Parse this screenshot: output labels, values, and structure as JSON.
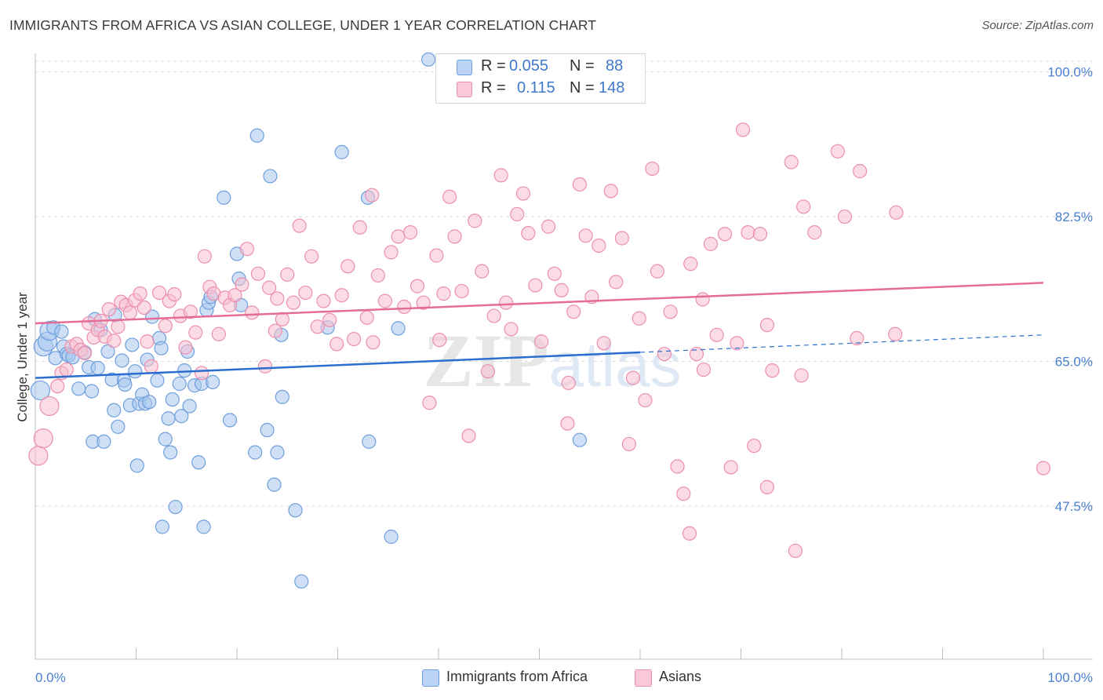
{
  "header": {
    "title": "IMMIGRANTS FROM AFRICA VS ASIAN COLLEGE, UNDER 1 YEAR CORRELATION CHART",
    "source": "Source: ZipAtlas.com"
  },
  "legend": {
    "rows": [
      {
        "r_label": "R =",
        "r_value": "0.055",
        "n_label": "N =",
        "n_value": "88"
      },
      {
        "r_label": "R =",
        "r_value": "0.115",
        "n_label": "N =",
        "n_value": "148"
      }
    ]
  },
  "watermark": {
    "zip": "ZIP",
    "atlas": "atlas"
  },
  "colors": {
    "blue_fill": "#a8c6ee",
    "blue_stroke": "#6f9fdc",
    "blue_line": "#2a6fd0",
    "pink_fill": "#f7bfd0",
    "pink_stroke": "#ec8fae",
    "pink_line": "#e46d97",
    "tick_label": "#4a7fd0",
    "grid": "#dcdcdc"
  },
  "chart_data": {
    "type": "scatter",
    "title": "IMMIGRANTS FROM AFRICA VS ASIAN COLLEGE, UNDER 1 YEAR CORRELATION CHART",
    "xlabel": "",
    "ylabel": "College, Under 1 year",
    "xlim": [
      0,
      100
    ],
    "ylim": [
      29,
      103
    ],
    "x_tick_labels": [
      "0.0%",
      "100.0%"
    ],
    "y_ticks": [
      47.5,
      65.0,
      82.5,
      100.0
    ],
    "y_tick_labels": [
      "47.5%",
      "65.0%",
      "82.5%",
      "100.0%"
    ],
    "grid": true,
    "legend_position": "bottom",
    "series": [
      {
        "name": "Immigrants from Africa",
        "color": "#a8c6ee",
        "r": 0.055,
        "n": 88,
        "trend": {
          "x0": 0,
          "y0": 63.0,
          "x1": 60,
          "y1": 66.1,
          "dashed_to_x": 100,
          "dashed_to_y": 68.2
        },
        "points": [
          [
            0.5,
            61.5
          ],
          [
            0.8,
            66.8
          ],
          [
            1.2,
            67.4
          ],
          [
            1.4,
            68.7
          ],
          [
            1.8,
            69.1
          ],
          [
            2.0,
            65.4
          ],
          [
            2.6,
            68.6
          ],
          [
            2.8,
            66.8
          ],
          [
            3.1,
            65.9
          ],
          [
            3.3,
            65.7
          ],
          [
            3.7,
            65.5
          ],
          [
            4.3,
            61.7
          ],
          [
            4.9,
            66.1
          ],
          [
            5.3,
            64.3
          ],
          [
            5.6,
            61.4
          ],
          [
            5.7,
            55.3
          ],
          [
            5.9,
            70.1
          ],
          [
            6.2,
            64.2
          ],
          [
            6.5,
            68.8
          ],
          [
            6.8,
            55.3
          ],
          [
            7.2,
            66.2
          ],
          [
            7.6,
            62.8
          ],
          [
            7.8,
            59.1
          ],
          [
            7.9,
            70.6
          ],
          [
            8.2,
            57.1
          ],
          [
            8.6,
            65.1
          ],
          [
            8.8,
            62.7
          ],
          [
            8.9,
            62.2
          ],
          [
            9.4,
            59.7
          ],
          [
            9.6,
            67.0
          ],
          [
            9.9,
            63.8
          ],
          [
            10.1,
            52.4
          ],
          [
            10.3,
            59.9
          ],
          [
            10.6,
            61.0
          ],
          [
            10.9,
            59.9
          ],
          [
            11.1,
            65.2
          ],
          [
            11.3,
            60.1
          ],
          [
            11.6,
            70.4
          ],
          [
            12.1,
            62.7
          ],
          [
            12.3,
            67.8
          ],
          [
            12.5,
            66.6
          ],
          [
            12.6,
            45.0
          ],
          [
            12.9,
            55.6
          ],
          [
            13.2,
            58.1
          ],
          [
            13.4,
            54.0
          ],
          [
            13.6,
            60.4
          ],
          [
            13.9,
            47.4
          ],
          [
            14.3,
            62.3
          ],
          [
            14.5,
            58.4
          ],
          [
            14.8,
            63.9
          ],
          [
            15.1,
            66.2
          ],
          [
            15.3,
            59.6
          ],
          [
            15.8,
            62.1
          ],
          [
            16.2,
            52.8
          ],
          [
            16.5,
            62.3
          ],
          [
            16.7,
            45.0
          ],
          [
            17.0,
            71.2
          ],
          [
            17.2,
            72.1
          ],
          [
            17.4,
            72.8
          ],
          [
            17.6,
            62.5
          ],
          [
            18.7,
            84.8
          ],
          [
            19.3,
            57.9
          ],
          [
            20.0,
            78.0
          ],
          [
            20.2,
            75.0
          ],
          [
            20.4,
            71.8
          ],
          [
            21.8,
            54.0
          ],
          [
            22.0,
            92.3
          ],
          [
            23.0,
            56.7
          ],
          [
            23.3,
            87.4
          ],
          [
            23.7,
            50.1
          ],
          [
            24.0,
            54.0
          ],
          [
            24.4,
            68.2
          ],
          [
            24.5,
            60.7
          ],
          [
            25.8,
            47.0
          ],
          [
            26.4,
            38.4
          ],
          [
            29.0,
            69.1
          ],
          [
            30.4,
            90.3
          ],
          [
            33.0,
            84.8
          ],
          [
            33.1,
            55.3
          ],
          [
            35.3,
            43.8
          ],
          [
            36.0,
            69.0
          ],
          [
            39.0,
            101.5
          ],
          [
            54.0,
            55.5
          ]
        ]
      },
      {
        "name": "Asians",
        "color": "#f7bfd0",
        "r": 0.115,
        "n": 148,
        "trend": {
          "x0": 0,
          "y0": 69.6,
          "x1": 100,
          "y1": 74.5
        },
        "points": [
          [
            0.3,
            53.6
          ],
          [
            0.8,
            55.7
          ],
          [
            1.4,
            59.6
          ],
          [
            2.2,
            62.0
          ],
          [
            2.6,
            63.6
          ],
          [
            3.1,
            64.0
          ],
          [
            3.6,
            66.8
          ],
          [
            4.1,
            67.1
          ],
          [
            4.5,
            66.4
          ],
          [
            4.9,
            66.0
          ],
          [
            5.3,
            69.6
          ],
          [
            5.8,
            67.9
          ],
          [
            6.2,
            68.8
          ],
          [
            6.5,
            69.9
          ],
          [
            6.9,
            68.0
          ],
          [
            7.3,
            71.3
          ],
          [
            7.8,
            67.5
          ],
          [
            8.2,
            69.2
          ],
          [
            8.5,
            72.2
          ],
          [
            9.0,
            71.8
          ],
          [
            9.4,
            70.9
          ],
          [
            9.9,
            72.4
          ],
          [
            10.4,
            73.2
          ],
          [
            10.8,
            71.5
          ],
          [
            11.1,
            67.4
          ],
          [
            11.5,
            64.4
          ],
          [
            12.3,
            73.3
          ],
          [
            12.9,
            69.3
          ],
          [
            13.3,
            72.3
          ],
          [
            13.8,
            73.1
          ],
          [
            14.4,
            70.5
          ],
          [
            14.9,
            66.7
          ],
          [
            15.4,
            71.0
          ],
          [
            15.9,
            68.5
          ],
          [
            16.5,
            63.6
          ],
          [
            16.8,
            77.7
          ],
          [
            17.3,
            74.0
          ],
          [
            17.7,
            73.2
          ],
          [
            18.2,
            68.3
          ],
          [
            18.8,
            72.7
          ],
          [
            19.3,
            71.8
          ],
          [
            19.8,
            73.0
          ],
          [
            20.5,
            74.3
          ],
          [
            21.0,
            78.6
          ],
          [
            21.5,
            70.9
          ],
          [
            22.1,
            75.6
          ],
          [
            22.8,
            64.4
          ],
          [
            23.2,
            73.9
          ],
          [
            23.8,
            68.7
          ],
          [
            24.5,
            70.1
          ],
          [
            25.0,
            75.5
          ],
          [
            25.6,
            72.1
          ],
          [
            26.2,
            81.4
          ],
          [
            26.8,
            73.3
          ],
          [
            27.4,
            77.7
          ],
          [
            28.0,
            69.2
          ],
          [
            28.6,
            72.3
          ],
          [
            29.2,
            70.0
          ],
          [
            29.9,
            67.1
          ],
          [
            30.4,
            73.0
          ],
          [
            31.0,
            76.5
          ],
          [
            31.6,
            67.7
          ],
          [
            32.2,
            81.2
          ],
          [
            32.9,
            70.3
          ],
          [
            33.4,
            85.1
          ],
          [
            34.0,
            75.4
          ],
          [
            34.7,
            72.3
          ],
          [
            35.3,
            78.2
          ],
          [
            36.0,
            80.1
          ],
          [
            36.6,
            71.6
          ],
          [
            37.2,
            80.6
          ],
          [
            37.9,
            74.1
          ],
          [
            38.5,
            72.1
          ],
          [
            39.1,
            60.0
          ],
          [
            39.8,
            77.8
          ],
          [
            40.5,
            73.2
          ],
          [
            41.1,
            84.9
          ],
          [
            41.6,
            80.1
          ],
          [
            42.3,
            73.5
          ],
          [
            43.0,
            56.0
          ],
          [
            43.6,
            82.0
          ],
          [
            44.3,
            75.9
          ],
          [
            44.9,
            63.8
          ],
          [
            45.5,
            70.5
          ],
          [
            46.2,
            87.5
          ],
          [
            46.7,
            72.1
          ],
          [
            47.2,
            68.9
          ],
          [
            47.8,
            82.8
          ],
          [
            48.4,
            85.3
          ],
          [
            48.9,
            80.5
          ],
          [
            49.6,
            74.2
          ],
          [
            50.2,
            67.4
          ],
          [
            50.9,
            81.3
          ],
          [
            51.5,
            75.6
          ],
          [
            52.2,
            73.6
          ],
          [
            52.8,
            57.5
          ],
          [
            53.4,
            71.0
          ],
          [
            54.0,
            86.4
          ],
          [
            54.6,
            80.2
          ],
          [
            55.2,
            72.8
          ],
          [
            55.9,
            79.0
          ],
          [
            56.4,
            67.2
          ],
          [
            57.1,
            85.6
          ],
          [
            57.6,
            74.6
          ],
          [
            58.2,
            79.9
          ],
          [
            58.9,
            55.0
          ],
          [
            59.3,
            63.0
          ],
          [
            59.9,
            70.2
          ],
          [
            60.5,
            60.3
          ],
          [
            61.2,
            88.3
          ],
          [
            61.7,
            75.9
          ],
          [
            62.4,
            65.9
          ],
          [
            63.0,
            71.0
          ],
          [
            63.7,
            52.3
          ],
          [
            64.3,
            49.0
          ],
          [
            65.0,
            76.8
          ],
          [
            65.6,
            65.9
          ],
          [
            66.2,
            72.5
          ],
          [
            67.0,
            79.2
          ],
          [
            67.6,
            68.2
          ],
          [
            68.4,
            80.4
          ],
          [
            69.0,
            52.2
          ],
          [
            69.6,
            67.2
          ],
          [
            70.2,
            93.0
          ],
          [
            70.7,
            80.6
          ],
          [
            71.3,
            54.8
          ],
          [
            71.9,
            80.4
          ],
          [
            72.6,
            69.4
          ],
          [
            73.1,
            63.9
          ],
          [
            75.4,
            42.1
          ],
          [
            76.2,
            83.7
          ],
          [
            77.3,
            80.6
          ],
          [
            79.6,
            90.4
          ],
          [
            80.3,
            82.5
          ],
          [
            81.8,
            88.0
          ],
          [
            85.3,
            68.3
          ],
          [
            100.0,
            52.1
          ],
          [
            24.0,
            72.6
          ],
          [
            33.5,
            67.3
          ],
          [
            40.1,
            67.6
          ],
          [
            52.9,
            62.4
          ],
          [
            64.9,
            44.2
          ],
          [
            66.3,
            64.0
          ],
          [
            72.6,
            49.8
          ],
          [
            75.0,
            89.1
          ],
          [
            76.0,
            63.3
          ],
          [
            81.5,
            67.8
          ],
          [
            85.4,
            83.0
          ]
        ]
      }
    ]
  },
  "bottom_legend": [
    {
      "label": "Immigrants from Africa"
    },
    {
      "label": "Asians"
    }
  ]
}
